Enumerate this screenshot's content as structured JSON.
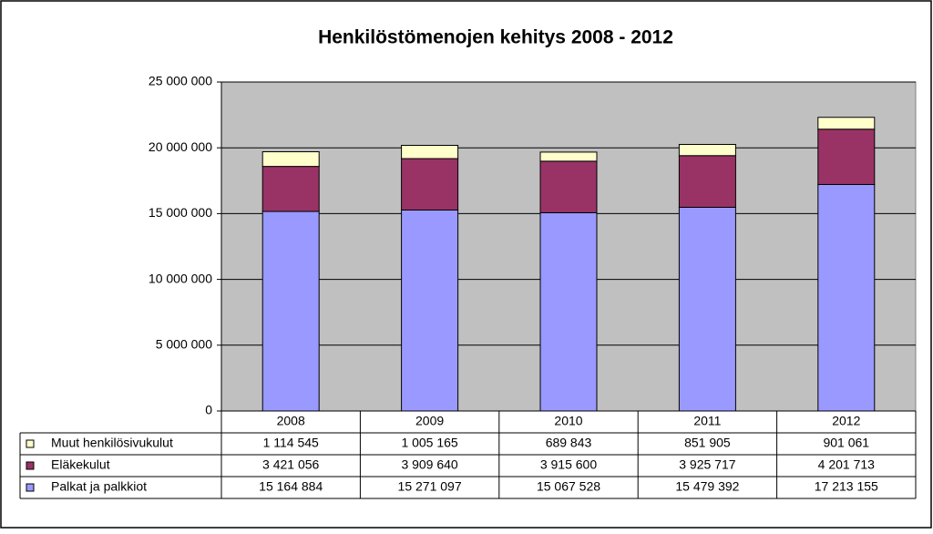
{
  "chart_data": {
    "type": "bar",
    "stacked": true,
    "title": "Henkilöstömenojen kehitys 2008 - 2012",
    "categories": [
      "2008",
      "2009",
      "2010",
      "2011",
      "2012"
    ],
    "series": [
      {
        "name": "Palkat ja palkkiot",
        "color": "#9999ff",
        "values": [
          15164884,
          15271097,
          15067528,
          15479392,
          17213155
        ],
        "value_labels": [
          "15 164 884",
          "15 271 097",
          "15 067 528",
          "15 479 392",
          "17 213 155"
        ]
      },
      {
        "name": "Eläkekulut",
        "color": "#993366",
        "values": [
          3421056,
          3909640,
          3915600,
          3925717,
          4201713
        ],
        "value_labels": [
          "3 421 056",
          "3 909 640",
          "3 915 600",
          "3 925 717",
          "4 201 713"
        ]
      },
      {
        "name": "Muut henkilösivukulut",
        "color": "#ffffcc",
        "values": [
          1114545,
          1005165,
          689843,
          851905,
          901061
        ],
        "value_labels": [
          "1 114 545",
          "1 005 165",
          "689 843",
          "851 905",
          "901 061"
        ]
      }
    ],
    "ylim": [
      0,
      25000000
    ],
    "yticks": [
      0,
      {
        "value": 5000000,
        "label": "5 000 000"
      },
      {
        "value": 10000000,
        "label": "10 000 000"
      },
      {
        "value": 15000000,
        "label": "15 000 000"
      },
      {
        "value": 20000000,
        "label": "20 000 000"
      },
      {
        "value": 25000000,
        "label": "25 000 000"
      }
    ],
    "grid": true,
    "plot_background": "#c0c0c0"
  }
}
